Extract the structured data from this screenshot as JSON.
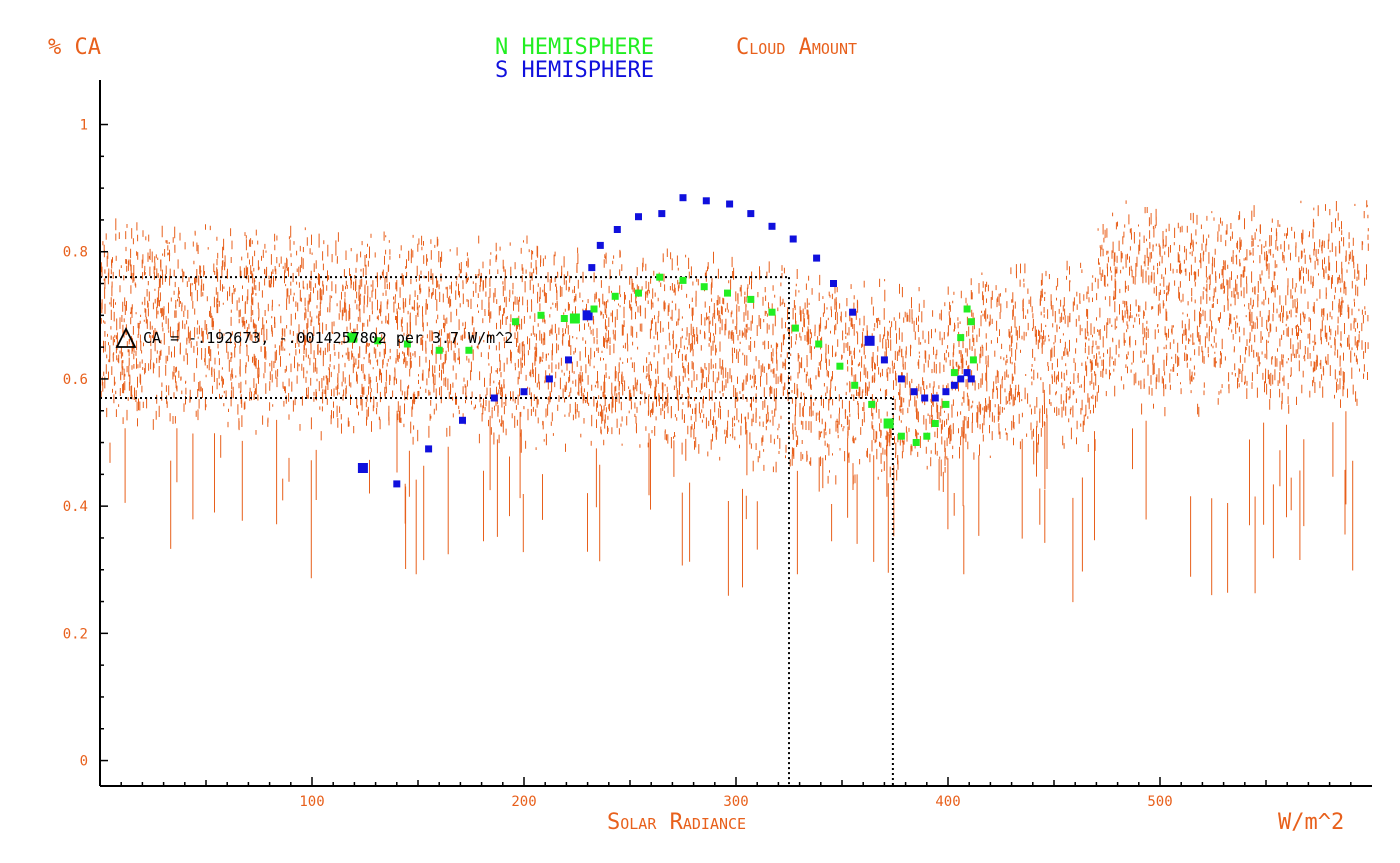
{
  "colors": {
    "cloud": "#e8601c",
    "north": "#22ee22",
    "south": "#1010dd",
    "axis": "#000000"
  },
  "chart_data": {
    "type": "scatter",
    "title_north": "N HEMISPHERE",
    "title_metric": "Cloud Amount",
    "title_south": "S HEMISPHERE",
    "ylabel": "% CA",
    "xlabel": "Solar Radiance",
    "xunit": "W/m^2",
    "annotation": "CA = -.192673, -.0014257802 per 3.7 W/m^2",
    "annotation_icon": "delta-triangle-icon",
    "xlim": [
      0,
      600
    ],
    "ylim": [
      -0.04,
      1.07
    ],
    "xticks": [
      100,
      200,
      300,
      400,
      500
    ],
    "yticks": [
      0,
      0.2,
      0.4,
      0.6,
      0.8,
      1
    ],
    "guides": {
      "h_upper": 0.76,
      "h_lower": 0.57,
      "v_left": 325,
      "v_right": 374
    },
    "series": [
      {
        "key": "south",
        "points": [
          [
            124,
            0.46
          ],
          [
            140,
            0.435
          ],
          [
            155,
            0.49
          ],
          [
            171,
            0.535
          ],
          [
            186,
            0.57
          ],
          [
            200,
            0.58
          ],
          [
            212,
            0.6
          ],
          [
            221,
            0.63
          ],
          [
            230,
            0.7
          ],
          [
            232,
            0.775
          ],
          [
            236,
            0.81
          ],
          [
            244,
            0.835
          ],
          [
            254,
            0.855
          ],
          [
            265,
            0.86
          ],
          [
            275,
            0.885
          ],
          [
            286,
            0.88
          ],
          [
            297,
            0.875
          ],
          [
            307,
            0.86
          ],
          [
            317,
            0.84
          ],
          [
            327,
            0.82
          ],
          [
            338,
            0.79
          ],
          [
            346,
            0.75
          ],
          [
            355,
            0.705
          ],
          [
            363,
            0.66
          ],
          [
            370,
            0.63
          ],
          [
            378,
            0.6
          ],
          [
            384,
            0.58
          ],
          [
            389,
            0.57
          ],
          [
            394,
            0.57
          ],
          [
            399,
            0.58
          ],
          [
            403,
            0.59
          ],
          [
            406,
            0.6
          ],
          [
            409,
            0.61
          ],
          [
            411,
            0.6
          ]
        ]
      },
      {
        "key": "north",
        "points": [
          [
            119,
            0.665
          ],
          [
            131,
            0.66
          ],
          [
            145,
            0.655
          ],
          [
            160,
            0.645
          ],
          [
            174,
            0.645
          ],
          [
            196,
            0.69
          ],
          [
            208,
            0.7
          ],
          [
            219,
            0.695
          ],
          [
            224,
            0.695
          ],
          [
            233,
            0.71
          ],
          [
            243,
            0.73
          ],
          [
            254,
            0.735
          ],
          [
            264,
            0.76
          ],
          [
            275,
            0.755
          ],
          [
            285,
            0.745
          ],
          [
            296,
            0.735
          ],
          [
            307,
            0.725
          ],
          [
            317,
            0.705
          ],
          [
            328,
            0.68
          ],
          [
            339,
            0.655
          ],
          [
            349,
            0.62
          ],
          [
            356,
            0.59
          ],
          [
            364,
            0.56
          ],
          [
            372,
            0.53
          ],
          [
            378,
            0.51
          ],
          [
            385,
            0.5
          ],
          [
            390,
            0.51
          ],
          [
            394,
            0.53
          ],
          [
            399,
            0.56
          ],
          [
            403,
            0.61
          ],
          [
            406,
            0.665
          ],
          [
            409,
            0.71
          ],
          [
            411,
            0.69
          ],
          [
            412,
            0.63
          ]
        ]
      }
    ]
  }
}
